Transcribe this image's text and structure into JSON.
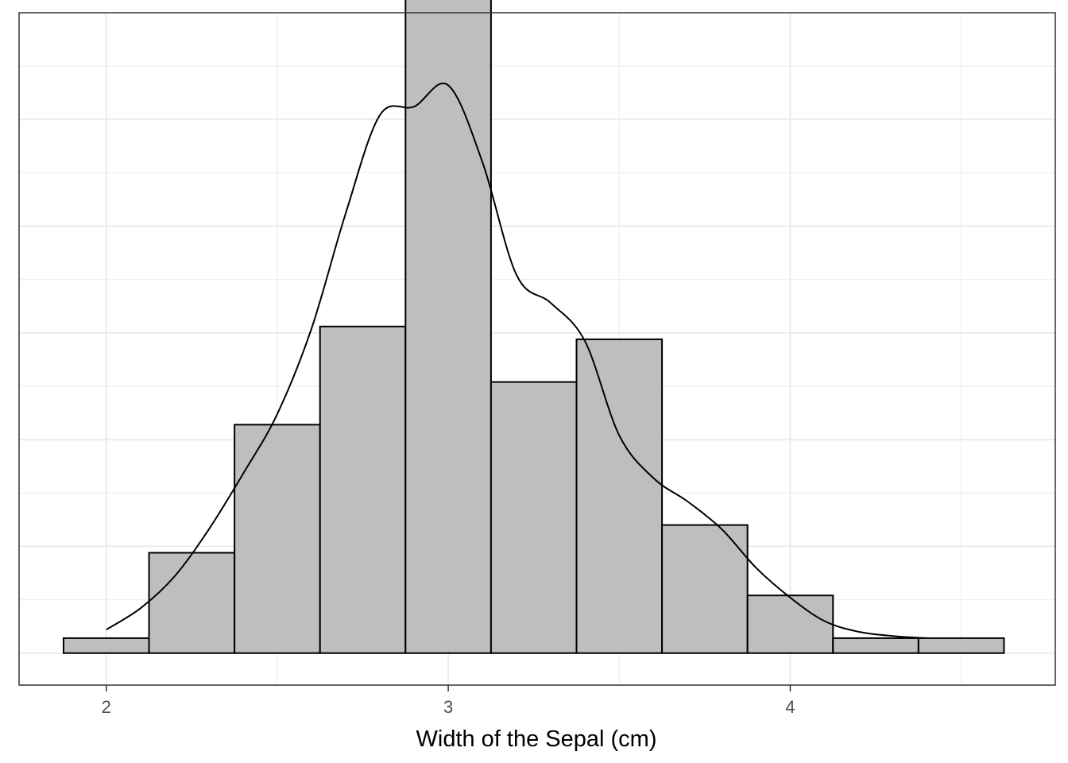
{
  "chart_data": {
    "type": "bar",
    "subtype": "histogram-with-density",
    "title": "",
    "xlabel": "Width of the Sepal (cm)",
    "ylabel": "",
    "xlim": [
      1.745,
      4.775
    ],
    "ylim": [
      -1.5,
      30
    ],
    "x_ticks": [
      2,
      3,
      4
    ],
    "x_tick_labels": [
      "2",
      "3",
      "4"
    ],
    "y_gridlines": [
      0,
      5,
      10,
      15,
      20,
      25
    ],
    "y_tick_labels_shown": false,
    "grid": true,
    "bin_width": 0.25,
    "bins": [
      {
        "x0": 1.875,
        "x1": 2.125,
        "count": 0.7
      },
      {
        "x0": 2.125,
        "x1": 2.375,
        "count": 4.7
      },
      {
        "x0": 2.375,
        "x1": 2.625,
        "count": 10.7
      },
      {
        "x0": 2.625,
        "x1": 2.875,
        "count": 15.3
      },
      {
        "x0": 2.875,
        "x1": 3.125,
        "count": 31.3
      },
      {
        "x0": 3.125,
        "x1": 3.375,
        "count": 12.7
      },
      {
        "x0": 3.375,
        "x1": 3.625,
        "count": 14.7
      },
      {
        "x0": 3.625,
        "x1": 3.875,
        "count": 6.0
      },
      {
        "x0": 3.875,
        "x1": 4.125,
        "count": 2.7
      },
      {
        "x0": 4.125,
        "x1": 4.375,
        "count": 0.7
      },
      {
        "x0": 4.375,
        "x1": 4.625,
        "count": 0.7
      }
    ],
    "density": {
      "x": [
        2.0,
        2.1,
        2.2,
        2.3,
        2.4,
        2.5,
        2.6,
        2.7,
        2.8,
        2.9,
        3.0,
        3.1,
        3.2,
        3.3,
        3.4,
        3.5,
        3.6,
        3.7,
        3.8,
        3.9,
        4.0,
        4.1,
        4.2,
        4.3,
        4.4
      ],
      "y": [
        1.1,
        2.1,
        3.6,
        5.8,
        8.4,
        11.2,
        15.2,
        20.6,
        25.2,
        25.6,
        26.6,
        23.0,
        17.7,
        16.4,
        14.6,
        10.2,
        8.2,
        7.1,
        5.8,
        4.0,
        2.6,
        1.5,
        1.0,
        0.8,
        0.7
      ]
    },
    "colors": {
      "bar_fill": "#bebebe",
      "bar_stroke": "#000000",
      "density_line": "#000000",
      "grid": "#ebebeb",
      "panel_border": "#333333",
      "tick_text": "#4d4d4d"
    }
  }
}
